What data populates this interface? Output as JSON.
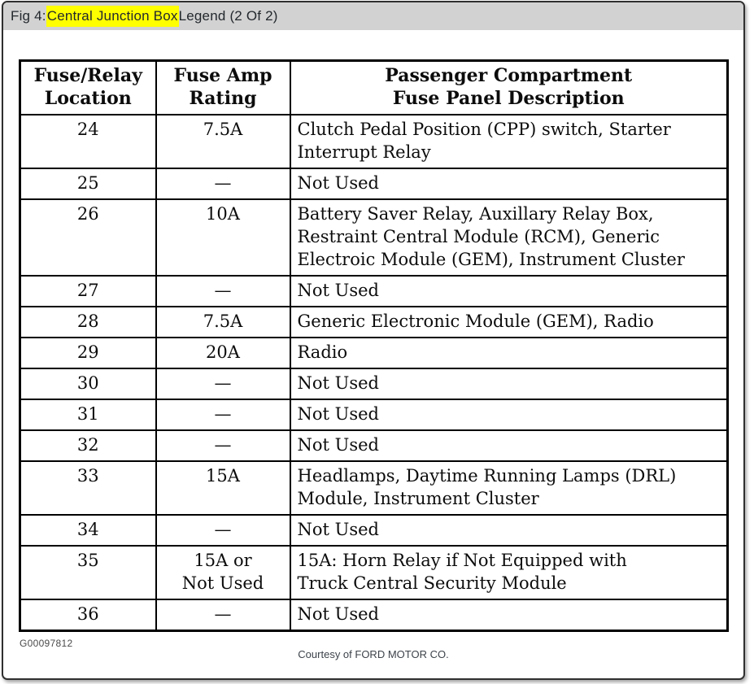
{
  "header": {
    "prefix": "Fig 4: ",
    "highlight": "Central Junction Box",
    "suffix": " Legend (2 Of 2)"
  },
  "table": {
    "headers": [
      "Fuse/Relay\nLocation",
      "Fuse Amp\nRating",
      "Passenger Compartment\nFuse Panel Description"
    ],
    "rows": [
      {
        "location": "24",
        "rating": "7.5A",
        "description": "Clutch Pedal Position (CPP) switch, Starter\nInterrupt Relay"
      },
      {
        "location": "25",
        "rating": "—",
        "description": "Not Used"
      },
      {
        "location": "26",
        "rating": "10A",
        "description": "Battery Saver Relay, Auxillary Relay Box,\nRestraint Central Module (RCM), Generic\nElectroic Module (GEM), Instrument Cluster"
      },
      {
        "location": "27",
        "rating": "—",
        "description": "Not Used"
      },
      {
        "location": "28",
        "rating": "7.5A",
        "description": "Generic Electronic Module (GEM), Radio"
      },
      {
        "location": "29",
        "rating": "20A",
        "description": "Radio"
      },
      {
        "location": "30",
        "rating": "—",
        "description": "Not Used"
      },
      {
        "location": "31",
        "rating": "—",
        "description": "Not Used"
      },
      {
        "location": "32",
        "rating": "—",
        "description": "Not Used"
      },
      {
        "location": "33",
        "rating": "15A",
        "description": "Headlamps, Daytime Running Lamps (DRL)\nModule, Instrument Cluster"
      },
      {
        "location": "34",
        "rating": "—",
        "description": "Not Used"
      },
      {
        "location": "35",
        "rating": "15A or\nNot Used",
        "description": "15A: Horn Relay if Not Equipped with\nTruck Central Security Module"
      },
      {
        "location": "36",
        "rating": "—",
        "description": "Not Used"
      }
    ]
  },
  "footer": {
    "code": "G00097812",
    "courtesy": "Courtesy of FORD MOTOR CO."
  },
  "colors": {
    "highlight": "#ffff00",
    "titlebar_bg": "#d2d2d2",
    "table_border": "#000000"
  }
}
